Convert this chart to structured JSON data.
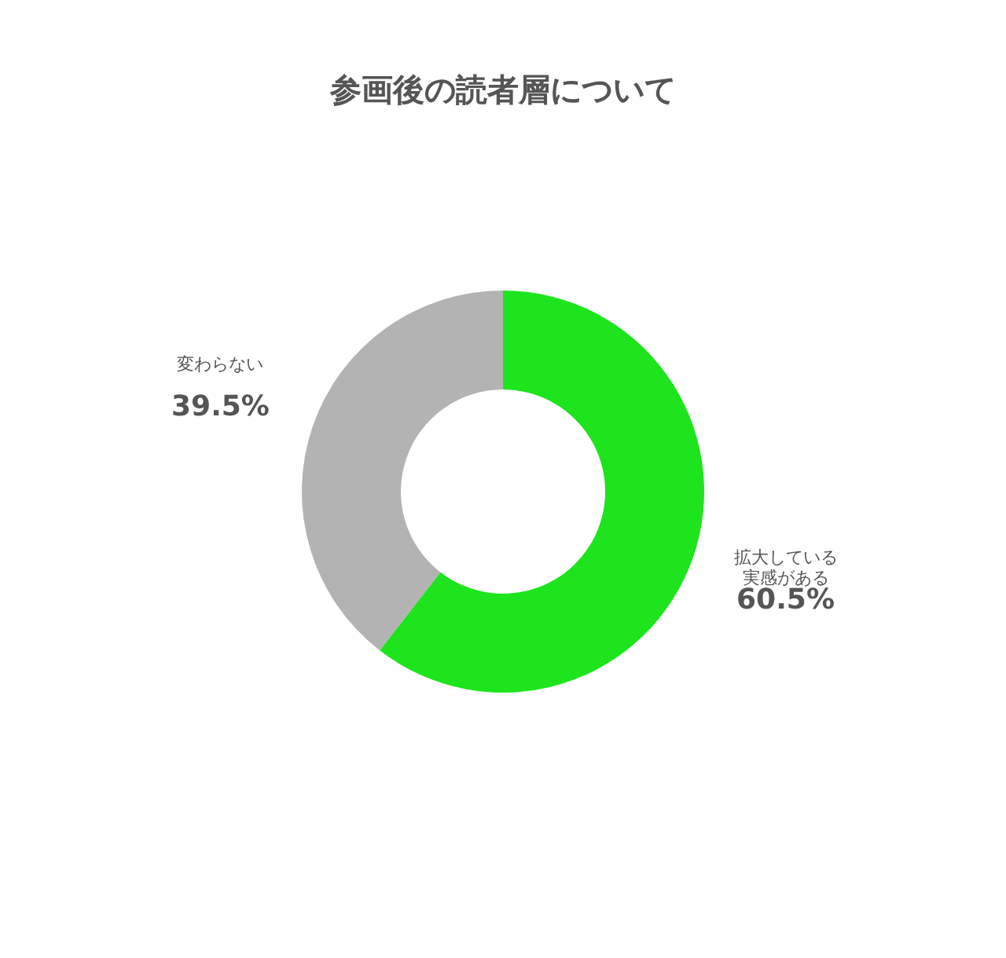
{
  "chart_data": {
    "type": "donut",
    "title": "参画後の読者層について",
    "categories": [
      "拡大している実感がある",
      "変わらない"
    ],
    "values": [
      60.5,
      39.5
    ],
    "colors": [
      "#1de41d",
      "#b3b3b3"
    ],
    "value_labels": [
      "60.5%",
      "39.5%"
    ]
  }
}
